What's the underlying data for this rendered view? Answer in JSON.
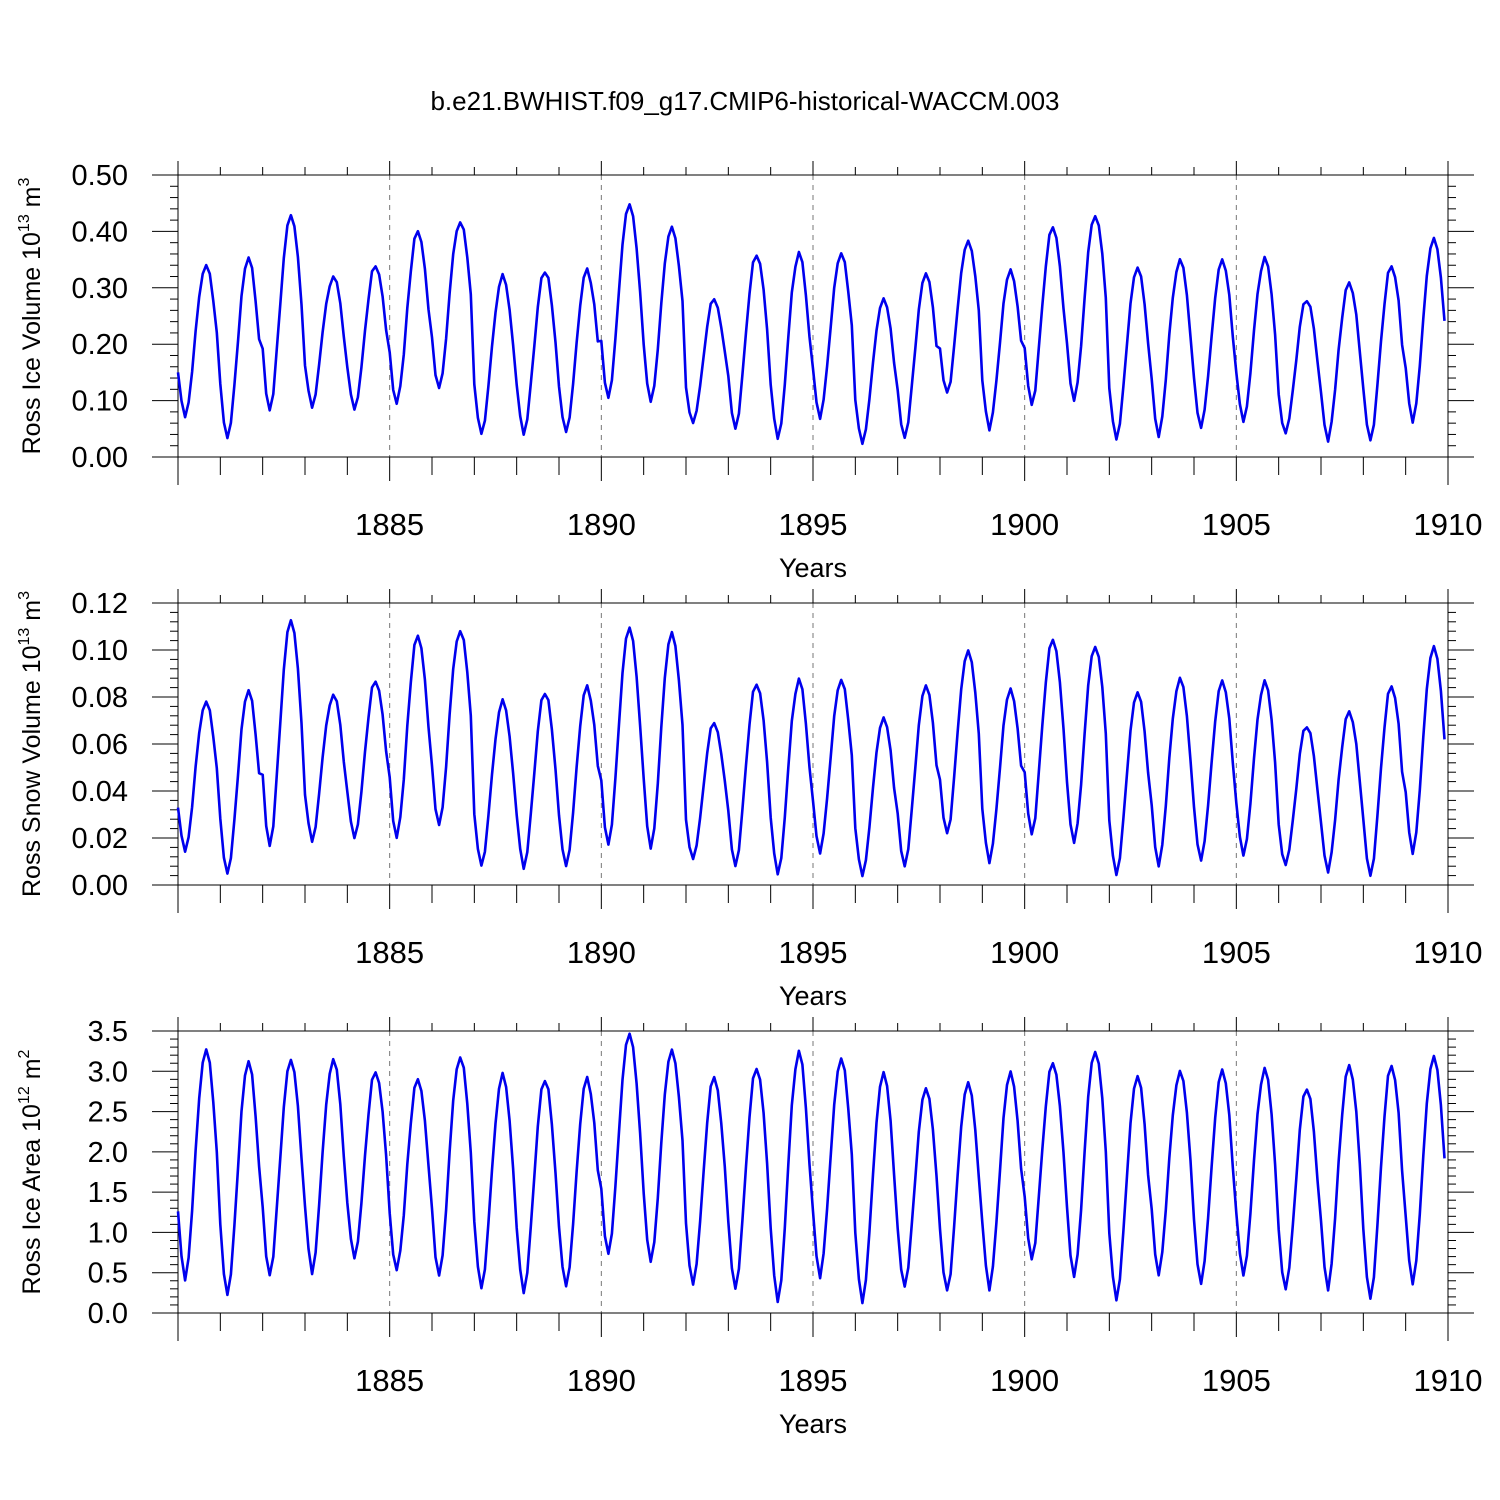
{
  "title": "b.e21.BWHIST.f09_g17.CMIP6-historical-WACCM.003",
  "colors": {
    "line": "#0000ee",
    "axes": "#000000",
    "grid": "#777777"
  },
  "chart_data": [
    {
      "type": "line",
      "title": "b.e21.BWHIST.f09_g17.CMIP6-historical-WACCM.003",
      "ylabel": {
        "text": "Ross Ice Volume 10",
        "exp": "13",
        "unit": " m",
        "unit_exp": "3"
      },
      "xlabel": "Years",
      "xlim": [
        1880,
        1910
      ],
      "ylim": [
        0,
        0.5
      ],
      "yticks": [
        "0.00",
        "0.10",
        "0.20",
        "0.30",
        "0.40",
        "0.50"
      ],
      "xticks": [
        "1885",
        "1890",
        "1895",
        "1900",
        "1905",
        "1910"
      ],
      "series": [
        {
          "name": "Ross Ice Volume",
          "peaks": [
            0.34,
            0.35,
            0.43,
            0.32,
            0.34,
            0.4,
            0.42,
            0.32,
            0.33,
            0.33,
            0.45,
            0.41,
            0.28,
            0.36,
            0.36,
            0.36,
            0.28,
            0.33,
            0.38,
            0.33,
            0.41,
            0.43,
            0.34,
            0.35,
            0.35,
            0.35,
            0.28,
            0.31,
            0.34,
            0.39
          ],
          "troughs": [
            0.07,
            0.03,
            0.08,
            0.09,
            0.08,
            0.09,
            0.12,
            0.04,
            0.04,
            0.04,
            0.1,
            0.1,
            0.06,
            0.05,
            0.03,
            0.07,
            0.02,
            0.03,
            0.11,
            0.05,
            0.09,
            0.1,
            0.03,
            0.04,
            0.05,
            0.06,
            0.04,
            0.03,
            0.03,
            0.06
          ]
        }
      ]
    },
    {
      "type": "line",
      "ylabel": {
        "text": "Ross Snow Volume 10",
        "exp": "13",
        "unit": " m",
        "unit_exp": "3"
      },
      "xlabel": "Years",
      "xlim": [
        1880,
        1910
      ],
      "ylim": [
        0,
        0.12
      ],
      "yticks": [
        "0.00",
        "0.02",
        "0.04",
        "0.06",
        "0.08",
        "0.10",
        "0.12"
      ],
      "xticks": [
        "1885",
        "1890",
        "1895",
        "1900",
        "1905",
        "1910"
      ],
      "series": [
        {
          "name": "Ross Snow Volume",
          "peaks": [
            0.078,
            0.082,
            0.113,
            0.081,
            0.087,
            0.106,
            0.109,
            0.078,
            0.082,
            0.084,
            0.11,
            0.108,
            0.069,
            0.086,
            0.087,
            0.087,
            0.071,
            0.086,
            0.099,
            0.083,
            0.105,
            0.102,
            0.083,
            0.088,
            0.087,
            0.086,
            0.068,
            0.074,
            0.085,
            0.102
          ],
          "troughs": [
            0.014,
            0.004,
            0.016,
            0.019,
            0.019,
            0.019,
            0.025,
            0.008,
            0.007,
            0.007,
            0.016,
            0.016,
            0.011,
            0.008,
            0.004,
            0.014,
            0.003,
            0.007,
            0.021,
            0.01,
            0.021,
            0.018,
            0.004,
            0.009,
            0.01,
            0.012,
            0.008,
            0.006,
            0.004,
            0.013
          ]
        }
      ]
    },
    {
      "type": "line",
      "ylabel": {
        "text": "Ross Ice Area 10",
        "exp": "12",
        "unit": " m",
        "unit_exp": "2"
      },
      "xlabel": "Years",
      "xlim": [
        1880,
        1910
      ],
      "ylim": [
        0,
        3.5
      ],
      "yticks": [
        "0.0",
        "0.5",
        "1.0",
        "1.5",
        "2.0",
        "2.5",
        "3.0",
        "3.5"
      ],
      "xticks": [
        "1885",
        "1890",
        "1895",
        "1900",
        "1905",
        "1910"
      ],
      "series": [
        {
          "name": "Ross Ice Area",
          "peaks": [
            3.27,
            3.1,
            3.15,
            3.15,
            3.0,
            2.9,
            3.2,
            2.95,
            2.9,
            2.9,
            3.48,
            3.28,
            2.93,
            3.05,
            3.23,
            3.15,
            2.98,
            2.82,
            2.84,
            2.98,
            3.12,
            3.26,
            2.97,
            3.0,
            3.02,
            3.01,
            2.8,
            3.08,
            3.08,
            3.2
          ],
          "troughs": [
            0.4,
            0.2,
            0.45,
            0.5,
            0.65,
            0.5,
            0.45,
            0.3,
            0.25,
            0.3,
            0.7,
            0.65,
            0.35,
            0.3,
            0.12,
            0.45,
            0.1,
            0.3,
            0.25,
            0.3,
            0.65,
            0.45,
            0.15,
            0.5,
            0.35,
            0.45,
            0.28,
            0.3,
            0.18,
            0.35
          ]
        }
      ]
    }
  ]
}
